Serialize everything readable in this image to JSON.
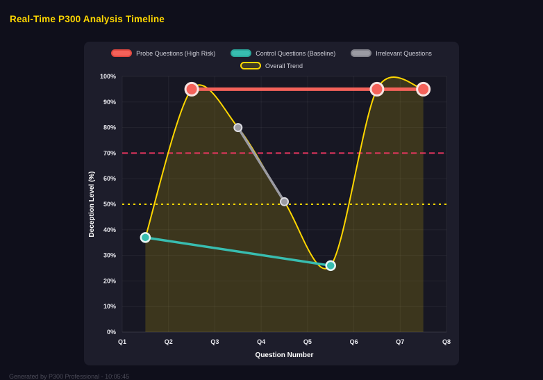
{
  "page": {
    "title": "Real-Time P300 Analysis Timeline",
    "footer": "Generated by P300 Professional - 10:05:45"
  },
  "chart_data": {
    "type": "line",
    "title": "Real-Time P300 Analysis Timeline",
    "xlabel": "Question Number",
    "ylabel": "Deception Level (%)",
    "xlim": [
      1,
      8
    ],
    "ylim": [
      0,
      100
    ],
    "grid": true,
    "legend_position": "top",
    "x_ticks": [
      {
        "value": 1,
        "label": "Q1"
      },
      {
        "value": 2,
        "label": "Q2"
      },
      {
        "value": 3,
        "label": "Q3"
      },
      {
        "value": 4,
        "label": "Q4"
      },
      {
        "value": 5,
        "label": "Q5"
      },
      {
        "value": 6,
        "label": "Q6"
      },
      {
        "value": 7,
        "label": "Q7"
      },
      {
        "value": 8,
        "label": "Q8"
      }
    ],
    "y_ticks": [
      {
        "value": 0,
        "label": "0%"
      },
      {
        "value": 10,
        "label": "10%"
      },
      {
        "value": 20,
        "label": "20%"
      },
      {
        "value": 30,
        "label": "30%"
      },
      {
        "value": 40,
        "label": "40%"
      },
      {
        "value": 50,
        "label": "50%"
      },
      {
        "value": 60,
        "label": "60%"
      },
      {
        "value": 70,
        "label": "70%"
      },
      {
        "value": 80,
        "label": "80%"
      },
      {
        "value": 90,
        "label": "90%"
      },
      {
        "value": 100,
        "label": "100%"
      }
    ],
    "series": [
      {
        "id": "probe",
        "name": "Probe Questions (High Risk)",
        "type": "line",
        "legend_row": 1,
        "color": "#f4625a",
        "legend_border": "#e04840",
        "marker_border": "#f6e3e1",
        "line_width": 5,
        "marker_radius": 9,
        "marker_border_width": 3,
        "x": [
          2.5,
          6.5,
          7.5
        ],
        "values": [
          95,
          95,
          95
        ]
      },
      {
        "id": "control",
        "name": "Control Questions (Baseline)",
        "type": "line",
        "legend_row": 1,
        "color": "#38bdb0",
        "legend_border": "#2ba89c",
        "marker_border": "#e8f6f4",
        "line_width": 3.5,
        "marker_radius": 6.5,
        "marker_border_width": 2.5,
        "x": [
          1.5,
          5.5
        ],
        "values": [
          37,
          26
        ]
      },
      {
        "id": "irrelevant",
        "name": "Irrelevant Questions",
        "type": "line",
        "legend_row": 1,
        "color": "#9b9ba3",
        "legend_border": "#83838c",
        "marker_border": "#dcdce2",
        "line_width": 3.5,
        "marker_radius": 5.5,
        "marker_border_width": 2,
        "x": [
          3.5,
          4.5
        ],
        "values": [
          80,
          51
        ]
      },
      {
        "id": "trend",
        "name": "Overall Trend",
        "type": "spline",
        "legend_row": 2,
        "color": "#ffd700",
        "fill": "rgba(255,215,0,0.16)",
        "legend_border": "#ffd700",
        "marker_border": "#ffd700",
        "line_width": 2,
        "marker_radius": 0,
        "marker_border_width": 0,
        "x": [
          1.5,
          2.5,
          3.5,
          4.5,
          5.5,
          6.5,
          7.5
        ],
        "values": [
          37,
          95,
          80,
          51,
          26,
          95,
          95
        ]
      }
    ],
    "thresholds": [
      {
        "value": 70,
        "color": "#e8365f",
        "dash": "8 5",
        "width": 2
      },
      {
        "value": 50,
        "color": "#ffd700",
        "dash": "3 5",
        "width": 2
      }
    ]
  }
}
